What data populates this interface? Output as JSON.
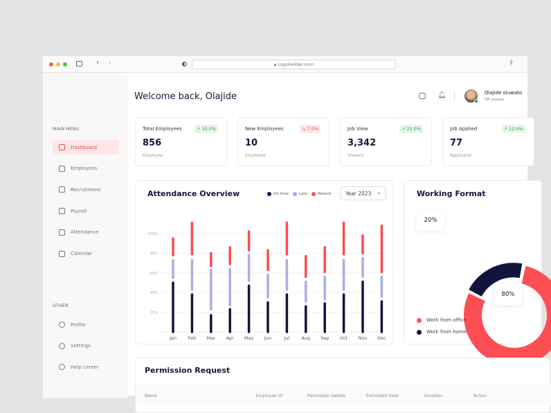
{
  "browser": {
    "url": "Logoholder.com"
  },
  "header": {
    "title": "Welcome back, Olajide",
    "user_name": "Olajide oluwato",
    "user_role": "HR people"
  },
  "sidebar": {
    "main_label": "MAIN MENU",
    "other_label": "OTHER",
    "main": [
      {
        "label": "Dashboard",
        "icon": "home-icon",
        "active": true
      },
      {
        "label": "Employees",
        "icon": "users-icon"
      },
      {
        "label": "Recruitment",
        "icon": "user-add-icon"
      },
      {
        "label": "Payroll",
        "icon": "payroll-icon"
      },
      {
        "label": "Attendance",
        "icon": "attendance-icon"
      },
      {
        "label": "Calendar",
        "icon": "calendar-icon"
      }
    ],
    "other": [
      {
        "label": "Profile",
        "icon": "user-icon"
      },
      {
        "label": "Settings",
        "icon": "gear-icon"
      },
      {
        "label": "Help center",
        "icon": "help-icon"
      }
    ]
  },
  "stats": [
    {
      "title": "Total Employees",
      "value": "856",
      "sub": "Employee",
      "badge": "10.0%",
      "trend": "up"
    },
    {
      "title": "New  Employees",
      "value": "10",
      "sub": "Employee",
      "badge": "7.0%",
      "trend": "down"
    },
    {
      "title": "Job View",
      "value": "3,342",
      "sub": "Viewers",
      "badge": "22.0%",
      "trend": "up"
    },
    {
      "title": "Job Applied",
      "value": "77",
      "sub": "Applicants",
      "badge": "12.0%",
      "trend": "up"
    }
  ],
  "chart_data": [
    {
      "type": "bar",
      "title": "Attendance Overview",
      "filter": "Year 2023",
      "categories": [
        "Jan",
        "Feb",
        "Mar",
        "Apr",
        "May",
        "Jun",
        "Jul",
        "Aug",
        "Sep",
        "Oct",
        "Nov",
        "Dec"
      ],
      "yticks": [
        "20%",
        "40%",
        "60%",
        "80%",
        "100%"
      ],
      "ylim": [
        0,
        115
      ],
      "series": [
        {
          "name": "On time",
          "color": "#11143d",
          "ranges": [
            [
              0,
              50
            ],
            [
              0,
              38
            ],
            [
              0,
              17
            ],
            [
              0,
              23
            ],
            [
              0,
              47
            ],
            [
              0,
              30
            ],
            [
              0,
              38
            ],
            [
              0,
              26
            ],
            [
              0,
              29
            ],
            [
              0,
              38
            ],
            [
              0,
              51
            ],
            [
              0,
              31
            ]
          ]
        },
        {
          "name": "Late",
          "color": "#a9ade6",
          "ranges": [
            [
              55,
              73
            ],
            [
              43,
              73
            ],
            [
              23,
              63
            ],
            [
              27,
              64
            ],
            [
              52,
              78
            ],
            [
              35,
              58
            ],
            [
              43,
              73
            ],
            [
              31,
              51
            ],
            [
              33,
              56
            ],
            [
              43,
              73
            ],
            [
              56,
              75
            ],
            [
              36,
              56
            ]
          ]
        },
        {
          "name": "Absent",
          "color": "#fd4a4f",
          "ranges": [
            [
              78,
              95
            ],
            [
              79,
              111
            ],
            [
              67,
              80
            ],
            [
              69,
              86
            ],
            [
              83,
              102
            ],
            [
              63,
              83
            ],
            [
              79,
              111
            ],
            [
              56,
              77
            ],
            [
              61,
              86
            ],
            [
              79,
              111
            ],
            [
              80,
              98
            ],
            [
              61,
              108
            ]
          ]
        }
      ]
    },
    {
      "type": "pie",
      "title": "Working Format",
      "slices": [
        {
          "name": "Work from office",
          "value": 80,
          "label": "80%",
          "color": "#fd4f53"
        },
        {
          "name": "Work from home",
          "value": 20,
          "label": "20%",
          "color": "#11143d"
        }
      ]
    }
  ],
  "permission": {
    "title": "Permission Request",
    "columns": [
      "Name",
      "Employee ID",
      "Permission Details",
      "Estimated Date",
      "Duration",
      "Action"
    ]
  }
}
